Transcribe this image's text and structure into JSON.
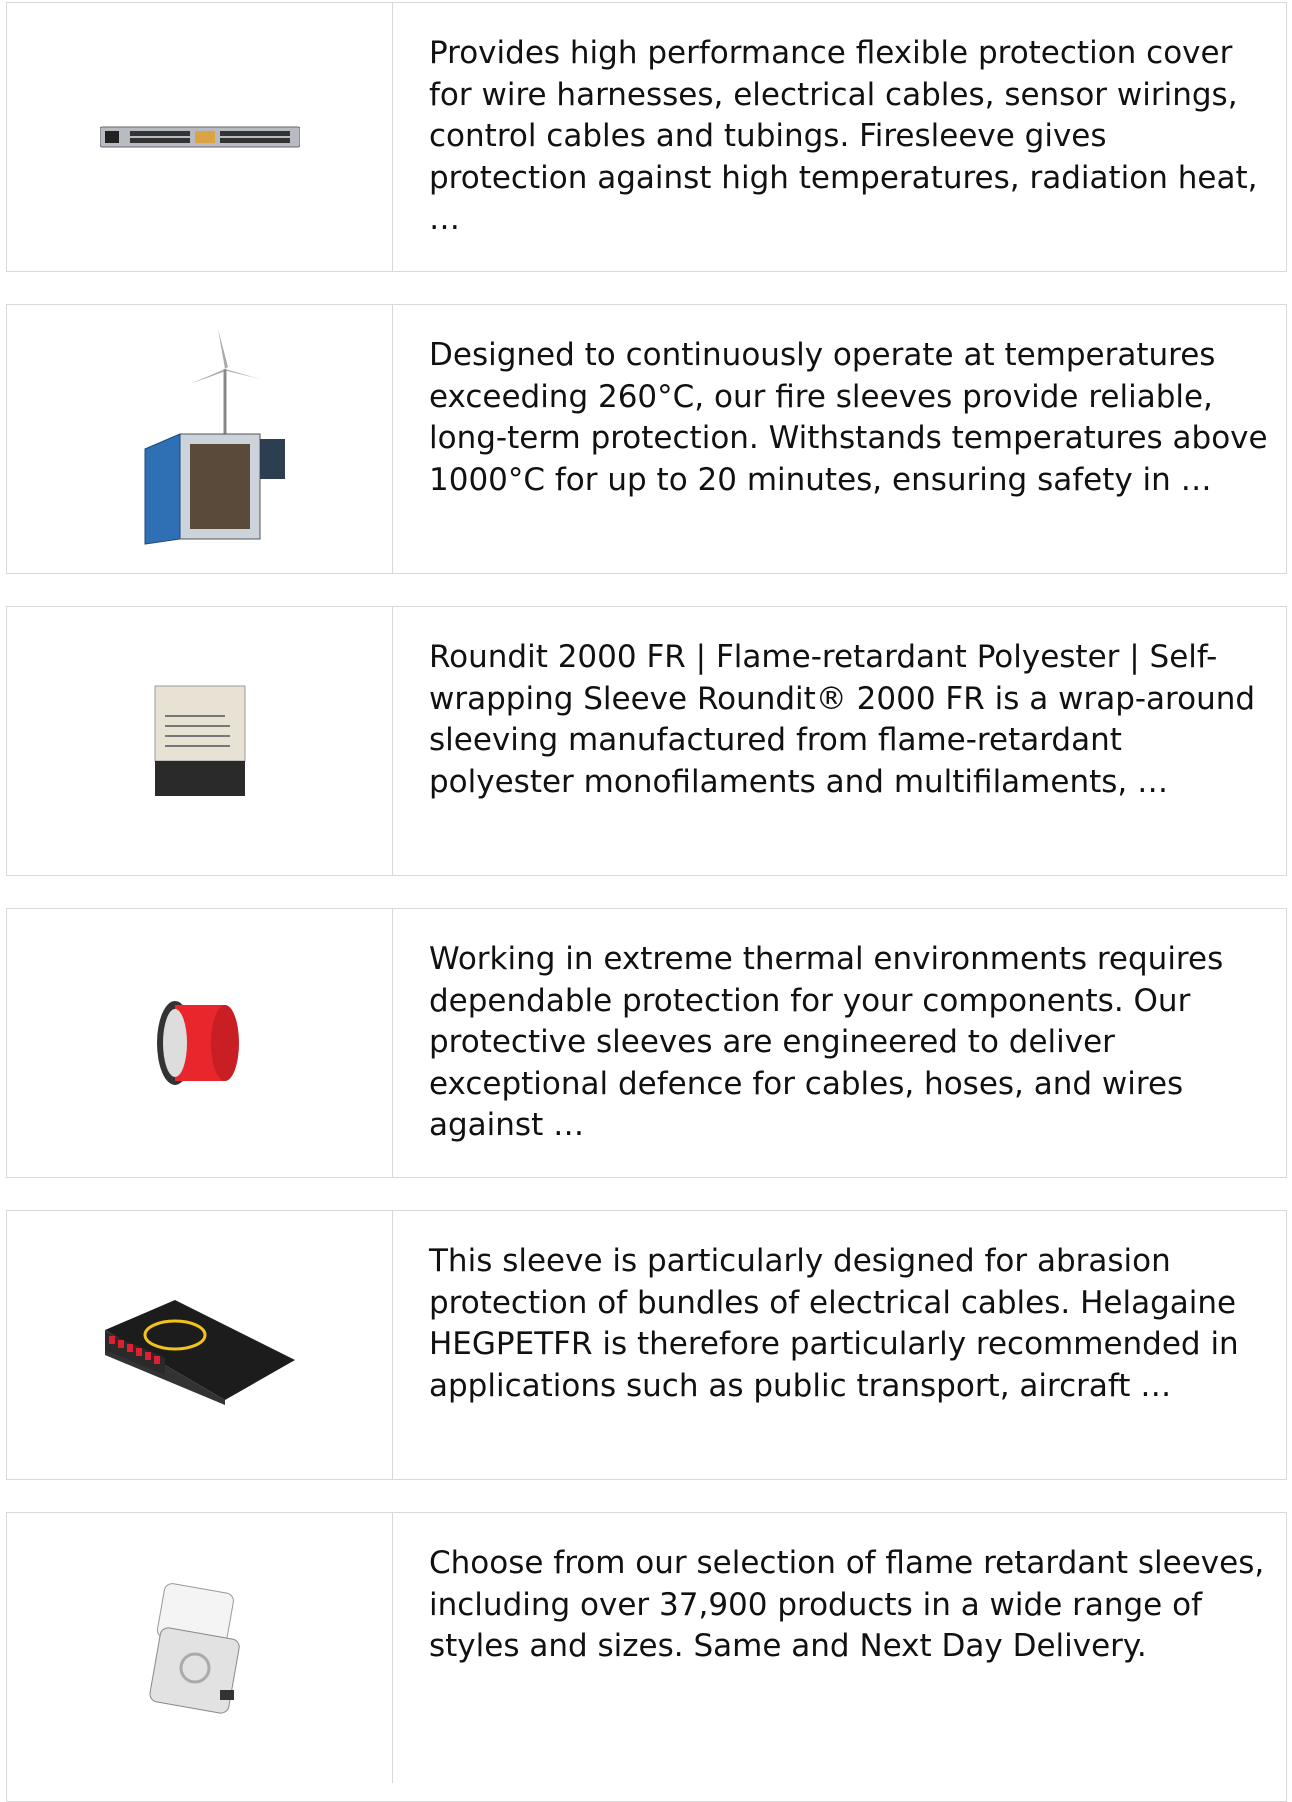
{
  "items": [
    {
      "description": "Provides high performance flexible protection cover for wire harnesses, electrical cables, sensor wirings, control cables and tubings. Firesleeve gives protection against high temperatures, radiation heat, …"
    },
    {
      "description": "Designed to continuously operate at temperatures exceeding 260°C, our fire sleeves provide reliable, long-term protection. Withstands temperatures above 1000°C for up to 20 minutes, ensuring safety in …"
    },
    {
      "description": "Roundit 2000 FR | Flame-retardant Polyester | Self-wrapping Sleeve Roundit® 2000 FR is a wrap-around sleeving manufactured from flame-retardant polyester monofilaments and multifilaments, …"
    },
    {
      "description": "Working in extreme thermal environments requires dependable protection for your components. Our protective sleeves are engineered to deliver exceptional defence for cables, hoses, and wires against …"
    },
    {
      "description": "This sleeve is particularly designed for abrasion protection of bundles of electrical cables. Helagaine HEGPETFR is therefore particularly recommended in applications such as public transport, aircraft …"
    },
    {
      "description": "Choose from our selection of flame retardant sleeves, including over 37,900 products in a wide range of styles and sizes. Same and Next Day Delivery."
    }
  ]
}
